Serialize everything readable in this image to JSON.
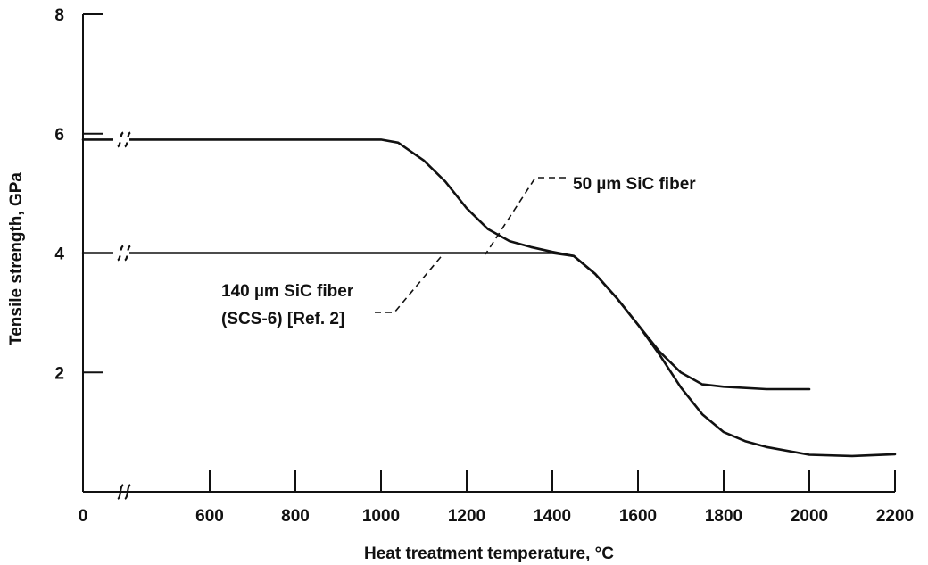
{
  "chart_data": {
    "type": "line",
    "title": "",
    "xlabel": "Heat treatment temperature, °C",
    "ylabel": "Tensile strength, GPa",
    "xlim": [
      0,
      2200
    ],
    "ylim": [
      0,
      8
    ],
    "x_ticks": [
      {
        "value": 0,
        "label": "0"
      },
      {
        "value": 600,
        "label": "600"
      },
      {
        "value": 800,
        "label": "800"
      },
      {
        "value": 1000,
        "label": "1000"
      },
      {
        "value": 1200,
        "label": "1200"
      },
      {
        "value": 1400,
        "label": "1400"
      },
      {
        "value": 1600,
        "label": "1600"
      },
      {
        "value": 1800,
        "label": "1800"
      },
      {
        "value": 2000,
        "label": "2000"
      },
      {
        "value": 2200,
        "label": "2200"
      }
    ],
    "y_ticks": [
      {
        "value": 0,
        "label": ""
      },
      {
        "value": 2,
        "label": "2"
      },
      {
        "value": 4,
        "label": "4"
      },
      {
        "value": 6,
        "label": "6"
      },
      {
        "value": 8,
        "label": "8"
      }
    ],
    "axis_break": {
      "x_from": 0,
      "x_to": 500
    },
    "grid": false,
    "series": [
      {
        "annotation": [
          "50 µm SiC fiber"
        ],
        "x": [
          400,
          1000,
          1040,
          1100,
          1150,
          1200,
          1250,
          1300,
          1350,
          1400,
          1450,
          1500,
          1550,
          1600,
          1650,
          1700,
          1750,
          1800,
          1900,
          2000
        ],
        "y": [
          5.9,
          5.9,
          5.85,
          5.55,
          5.2,
          4.75,
          4.4,
          4.2,
          4.1,
          4.02,
          3.95,
          3.65,
          3.25,
          2.8,
          2.35,
          2.0,
          1.8,
          1.76,
          1.72,
          1.72
        ]
      },
      {
        "annotation": [
          "140 µm SiC fiber",
          "(SCS-6) [Ref. 2]"
        ],
        "x": [
          400,
          1000,
          1200,
          1400,
          1450,
          1500,
          1550,
          1600,
          1650,
          1700,
          1750,
          1800,
          1850,
          1900,
          2000,
          2100,
          2200
        ],
        "y": [
          4.0,
          4.0,
          4.0,
          4.0,
          3.95,
          3.65,
          3.25,
          2.8,
          2.3,
          1.75,
          1.3,
          1.0,
          0.85,
          0.75,
          0.62,
          0.6,
          0.63
        ]
      }
    ]
  }
}
